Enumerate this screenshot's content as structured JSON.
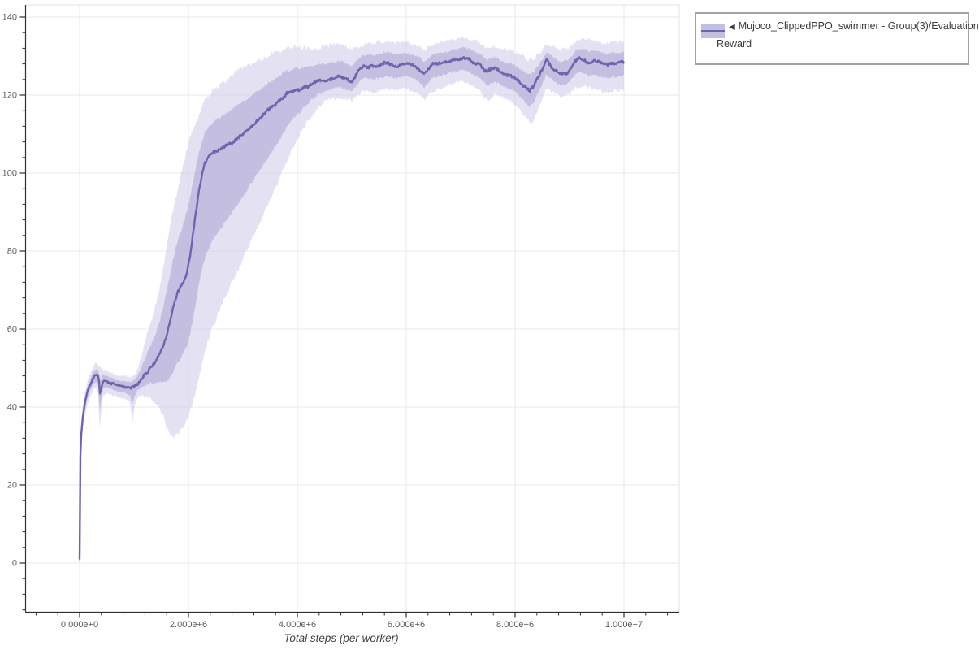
{
  "figure": {
    "background": "#ffffff"
  },
  "legend": {
    "marker": "◀",
    "label": "Mujoco_ClippedPPO_swimmer - Group(3)/Evaluation Reward",
    "lines": [
      "Mujoco_ClippedPPO_swimmer - Group(3)/Evaluation",
      "Reward"
    ]
  },
  "colors": {
    "line": "#6b65ac",
    "band_outer": "#cdc9e8",
    "band_inner": "#aaa4d3",
    "grid": "#e8e8e8",
    "outline": "#e3e3e3",
    "axis": "#2f2f2f",
    "tick_label": "#5a5a5a",
    "axis_label": "#3f3f3f",
    "legend_border": "#a3a3a3",
    "swatch_band": "#bcb7de"
  },
  "chart_data": {
    "type": "line",
    "title": "",
    "xlabel": "Total steps (per worker)",
    "ylabel": "",
    "grid": true,
    "legend_position": "top-right-outside",
    "x_unit": "steps (values below given in millions of steps)",
    "xlim_millions": [
      -1.0,
      11.0
    ],
    "ylim": [
      -12.5,
      143
    ],
    "x_tick_values_millions": [
      0,
      2,
      4,
      6,
      8,
      10
    ],
    "x_tick_labels": [
      "0.000e+0",
      "2.000e+6",
      "4.000e+6",
      "6.000e+6",
      "8.000e+6",
      "1.000e+7"
    ],
    "x_minor_step_millions": 0.4,
    "y_tick_values": [
      0,
      20,
      40,
      60,
      80,
      100,
      120,
      140
    ],
    "y_tick_labels": [
      "0",
      "20",
      "40",
      "60",
      "80",
      "100",
      "120",
      "140"
    ],
    "y_minor_step": 4,
    "series": [
      {
        "name": "Mujoco_ClippedPPO_swimmer - Group(3)/Evaluation Reward",
        "color": "#6b65ac",
        "band_color": "#cdc9e8",
        "mean_keypoints": [
          [
            0,
            0.5
          ],
          [
            0.012,
            26.5
          ],
          [
            0.03,
            33
          ],
          [
            0.06,
            37.5
          ],
          [
            0.1,
            41
          ],
          [
            0.14,
            43.5
          ],
          [
            0.19,
            45.5
          ],
          [
            0.24,
            47
          ],
          [
            0.29,
            48.2
          ],
          [
            0.34,
            48
          ],
          [
            0.355,
            47.6
          ],
          [
            0.368,
            42.9
          ],
          [
            0.385,
            44
          ],
          [
            0.43,
            46.8
          ],
          [
            0.5,
            46.8
          ],
          [
            0.57,
            46.2
          ],
          [
            0.65,
            45.8
          ],
          [
            0.75,
            45.4
          ],
          [
            0.85,
            45.2
          ],
          [
            0.93,
            45.0
          ],
          [
            1.0,
            45.5
          ],
          [
            1.07,
            46.2
          ],
          [
            1.15,
            47.3
          ],
          [
            1.22,
            48.6
          ],
          [
            1.3,
            50
          ],
          [
            1.38,
            51.3
          ],
          [
            1.45,
            52.8
          ],
          [
            1.52,
            55
          ],
          [
            1.58,
            57.5
          ],
          [
            1.64,
            60.5
          ],
          [
            1.7,
            64
          ],
          [
            1.75,
            67
          ],
          [
            1.8,
            69.5
          ],
          [
            1.86,
            70.8
          ],
          [
            1.92,
            72.5
          ],
          [
            1.97,
            74.5
          ],
          [
            2.02,
            78
          ],
          [
            2.07,
            83
          ],
          [
            2.12,
            88.5
          ],
          [
            2.16,
            92.5
          ],
          [
            2.2,
            96
          ],
          [
            2.25,
            99.5
          ],
          [
            2.3,
            102.5
          ],
          [
            2.36,
            104
          ],
          [
            2.44,
            105
          ],
          [
            2.52,
            105.7
          ],
          [
            2.6,
            106.2
          ],
          [
            2.7,
            106.9
          ],
          [
            2.8,
            107.7
          ],
          [
            2.9,
            108.8
          ],
          [
            3.0,
            109.9
          ],
          [
            3.1,
            111.2
          ],
          [
            3.2,
            112.5
          ],
          [
            3.3,
            113.9
          ],
          [
            3.4,
            115.2
          ],
          [
            3.5,
            116.4
          ],
          [
            3.6,
            117.7
          ],
          [
            3.7,
            119.1
          ],
          [
            3.8,
            120.3
          ],
          [
            3.9,
            120.8
          ],
          [
            3.98,
            121.6
          ],
          [
            4.04,
            120.9
          ],
          [
            4.1,
            121.8
          ],
          [
            4.2,
            122.5
          ],
          [
            4.3,
            123.1
          ],
          [
            4.4,
            123.7
          ],
          [
            4.5,
            123.5
          ],
          [
            4.6,
            123.9
          ],
          [
            4.7,
            124.3
          ],
          [
            4.8,
            124.7
          ],
          [
            4.9,
            124.0
          ],
          [
            4.99,
            123.3
          ],
          [
            5.06,
            124.6
          ],
          [
            5.13,
            126.5
          ],
          [
            5.22,
            127.6
          ],
          [
            5.32,
            127.2
          ],
          [
            5.42,
            127.3
          ],
          [
            5.52,
            127.6
          ],
          [
            5.62,
            128.2
          ],
          [
            5.72,
            127.8
          ],
          [
            5.82,
            127.4
          ],
          [
            5.92,
            127.9
          ],
          [
            6.02,
            128.3
          ],
          [
            6.12,
            127.7
          ],
          [
            6.22,
            127.0
          ],
          [
            6.33,
            125.4
          ],
          [
            6.41,
            126.6
          ],
          [
            6.49,
            128.1
          ],
          [
            6.58,
            128.0
          ],
          [
            6.67,
            128.2
          ],
          [
            6.76,
            128.4
          ],
          [
            6.86,
            128.9
          ],
          [
            6.97,
            129.3
          ],
          [
            7.06,
            129.6
          ],
          [
            7.13,
            129.3
          ],
          [
            7.21,
            128.6
          ],
          [
            7.29,
            128.0
          ],
          [
            7.35,
            127.7
          ],
          [
            7.42,
            126.7
          ],
          [
            7.49,
            125.9
          ],
          [
            7.56,
            126.6
          ],
          [
            7.63,
            127.1
          ],
          [
            7.7,
            126.3
          ],
          [
            7.77,
            125.5
          ],
          [
            7.86,
            125.0
          ],
          [
            7.94,
            124.6
          ],
          [
            8.01,
            124.1
          ],
          [
            8.1,
            123.0
          ],
          [
            8.19,
            122.1
          ],
          [
            8.27,
            121.2
          ],
          [
            8.34,
            122.4
          ],
          [
            8.42,
            124.4
          ],
          [
            8.5,
            126.5
          ],
          [
            8.57,
            128.9
          ],
          [
            8.63,
            127.9
          ],
          [
            8.7,
            126.9
          ],
          [
            8.79,
            125.7
          ],
          [
            8.88,
            125.4
          ],
          [
            8.98,
            126.0
          ],
          [
            9.08,
            128.2
          ],
          [
            9.17,
            129.3
          ],
          [
            9.26,
            128.9
          ],
          [
            9.36,
            128.2
          ],
          [
            9.45,
            128.9
          ],
          [
            9.53,
            128.6
          ],
          [
            9.62,
            128.2
          ],
          [
            9.7,
            127.8
          ],
          [
            9.78,
            128.3
          ],
          [
            9.86,
            128.1
          ],
          [
            9.94,
            128.4
          ],
          [
            10,
            128.3
          ]
        ],
        "band_keypoints": [
          [
            0,
            0.5,
            22
          ],
          [
            0.012,
            24,
            29
          ],
          [
            0.03,
            30.5,
            35.5
          ],
          [
            0.06,
            35,
            40
          ],
          [
            0.1,
            38.5,
            43.5
          ],
          [
            0.14,
            41,
            46
          ],
          [
            0.19,
            43,
            48
          ],
          [
            0.24,
            44.5,
            49.8
          ],
          [
            0.29,
            45.3,
            51
          ],
          [
            0.34,
            44.5,
            50.5
          ],
          [
            0.368,
            34.5,
            49.5
          ],
          [
            0.4,
            40,
            49.5
          ],
          [
            0.43,
            43.5,
            49.3
          ],
          [
            0.5,
            44,
            49
          ],
          [
            0.57,
            43.6,
            48.4
          ],
          [
            0.65,
            43.2,
            48
          ],
          [
            0.75,
            42.8,
            47.6
          ],
          [
            0.85,
            42.5,
            47.5
          ],
          [
            0.93,
            41.5,
            47.3
          ],
          [
            0.97,
            36.5,
            47.2
          ],
          [
            1.01,
            41,
            47.8
          ],
          [
            1.07,
            43,
            49.5
          ],
          [
            1.15,
            43.5,
            53
          ],
          [
            1.22,
            43.5,
            57
          ],
          [
            1.3,
            43,
            60.5
          ],
          [
            1.38,
            42,
            64.5
          ],
          [
            1.45,
            41,
            68.5
          ],
          [
            1.52,
            39,
            73.5
          ],
          [
            1.58,
            36.5,
            78.5
          ],
          [
            1.64,
            34.5,
            83.5
          ],
          [
            1.7,
            33.5,
            88.5
          ],
          [
            1.76,
            33.8,
            92.5
          ],
          [
            1.82,
            34.5,
            96
          ],
          [
            1.9,
            36,
            101
          ],
          [
            1.97,
            37.5,
            105
          ],
          [
            2.04,
            40,
            108.5
          ],
          [
            2.12,
            44,
            111.5
          ],
          [
            2.2,
            49,
            114.5
          ],
          [
            2.28,
            53.5,
            117
          ],
          [
            2.36,
            57.5,
            118.8
          ],
          [
            2.44,
            61,
            120
          ],
          [
            2.52,
            64,
            121
          ],
          [
            2.6,
            66.8,
            122
          ],
          [
            2.7,
            69.8,
            123
          ],
          [
            2.8,
            72.8,
            124.2
          ],
          [
            2.9,
            75.8,
            125.2
          ],
          [
            3.0,
            78.8,
            126.1
          ],
          [
            3.1,
            82,
            126.8
          ],
          [
            3.2,
            85.2,
            127.4
          ],
          [
            3.3,
            88,
            128
          ],
          [
            3.4,
            91,
            128.7
          ],
          [
            3.5,
            94,
            129.4
          ],
          [
            3.6,
            97,
            130.1
          ],
          [
            3.7,
            100.3,
            130.7
          ],
          [
            3.8,
            103.8,
            131.1
          ],
          [
            3.9,
            106.8,
            131.4
          ],
          [
            4.0,
            109.8,
            131.6
          ],
          [
            4.1,
            112.3,
            131.4
          ],
          [
            4.2,
            114.3,
            131.1
          ],
          [
            4.3,
            116.3,
            131.0
          ],
          [
            4.4,
            117.8,
            131.4
          ],
          [
            4.5,
            119.3,
            131.8
          ],
          [
            4.6,
            119.8,
            132.1
          ],
          [
            4.72,
            120.3,
            132.3
          ],
          [
            4.85,
            120.0,
            132.0
          ],
          [
            4.99,
            119.2,
            130.8
          ],
          [
            5.1,
            120.8,
            131.5
          ],
          [
            5.22,
            121.8,
            132.4
          ],
          [
            5.35,
            121.4,
            132.6
          ],
          [
            5.5,
            121.8,
            132.8
          ],
          [
            5.65,
            122.3,
            133.1
          ],
          [
            5.8,
            121.8,
            132.7
          ],
          [
            5.95,
            122.2,
            132.9
          ],
          [
            6.1,
            121.8,
            132.4
          ],
          [
            6.25,
            120.8,
            131.8
          ],
          [
            6.34,
            119.3,
            130.8
          ],
          [
            6.45,
            121.3,
            132.1
          ],
          [
            6.6,
            122.2,
            132.8
          ],
          [
            6.75,
            123.2,
            133.2
          ],
          [
            6.9,
            123.8,
            133.7
          ],
          [
            7.03,
            124.0,
            134.2
          ],
          [
            7.13,
            123.7,
            134.0
          ],
          [
            7.25,
            122.8,
            133.3
          ],
          [
            7.38,
            121.4,
            132.4
          ],
          [
            7.5,
            119.4,
            131.3
          ],
          [
            7.62,
            120.8,
            131.8
          ],
          [
            7.74,
            120.3,
            131.3
          ],
          [
            7.88,
            119.4,
            130.8
          ],
          [
            8.0,
            118.4,
            130.3
          ],
          [
            8.12,
            116.3,
            129.3
          ],
          [
            8.24,
            113.9,
            128.3
          ],
          [
            8.33,
            114.4,
            128.4
          ],
          [
            8.44,
            117.8,
            129.8
          ],
          [
            8.57,
            122.3,
            132.3
          ],
          [
            8.7,
            121.3,
            131.8
          ],
          [
            8.84,
            120.3,
            130.9
          ],
          [
            8.98,
            120.8,
            131.3
          ],
          [
            9.12,
            122.8,
            133.3
          ],
          [
            9.27,
            122.8,
            133.8
          ],
          [
            9.42,
            122.4,
            133.4
          ],
          [
            9.56,
            121.9,
            132.9
          ],
          [
            9.7,
            121.4,
            132.6
          ],
          [
            9.84,
            121.8,
            133.0
          ],
          [
            10,
            122.3,
            132.9
          ]
        ]
      }
    ]
  }
}
